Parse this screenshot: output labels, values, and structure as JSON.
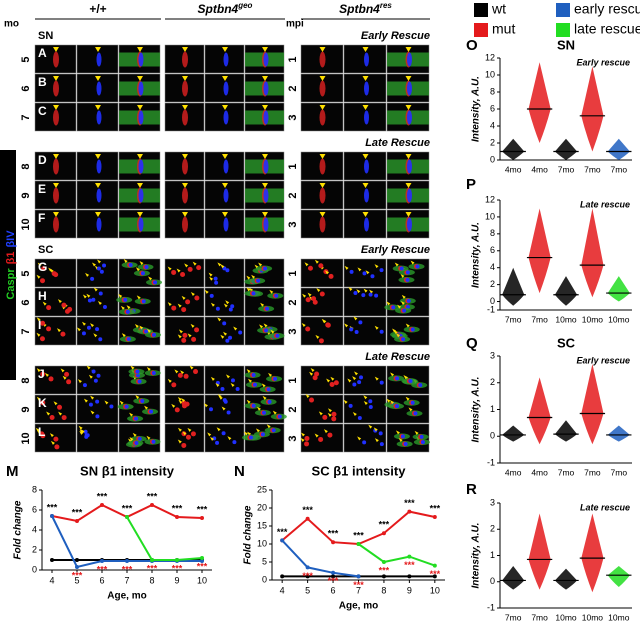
{
  "figure": {
    "genotypes": [
      {
        "base": "+/+"
      },
      {
        "base": "Sptbn4",
        "sup": "geo"
      },
      {
        "base": "Sptbn4",
        "sup": "res"
      }
    ],
    "mo_label": "mo",
    "mpi_label": "mpi",
    "stain_labels": [
      {
        "name": "Caspr",
        "color": "#22cc22"
      },
      {
        "name": "β1",
        "color": "#e41a1c"
      },
      {
        "name": "βIV",
        "color": "#2040ff"
      }
    ],
    "sections": [
      {
        "label": "SN",
        "blocks": [
          {
            "title": "Early Rescue",
            "rows": [
              {
                "panel": "A",
                "mo": "5",
                "mpi": "1"
              },
              {
                "panel": "B",
                "mo": "6",
                "mpi": "2"
              },
              {
                "panel": "C",
                "mo": "7",
                "mpi": "3"
              }
            ]
          },
          {
            "title": "Late Rescue",
            "rows": [
              {
                "panel": "D",
                "mo": "8",
                "mpi": "1"
              },
              {
                "panel": "E",
                "mo": "9",
                "mpi": "2"
              },
              {
                "panel": "F",
                "mo": "10",
                "mpi": "3"
              }
            ]
          }
        ]
      },
      {
        "label": "SC",
        "blocks": [
          {
            "title": "Early Rescue",
            "rows": [
              {
                "panel": "G",
                "mo": "5",
                "mpi": "1"
              },
              {
                "panel": "H",
                "mo": "6",
                "mpi": "2"
              },
              {
                "panel": "I",
                "mo": "7",
                "mpi": "3"
              }
            ]
          },
          {
            "title": "Late Rescue",
            "rows": [
              {
                "panel": "J",
                "mo": "8",
                "mpi": "1"
              },
              {
                "panel": "K",
                "mo": "9",
                "mpi": "2"
              },
              {
                "panel": "L",
                "mo": "10",
                "mpi": "3"
              }
            ]
          }
        ]
      }
    ],
    "legend": [
      {
        "name": "wt",
        "color": "#000000"
      },
      {
        "name": "mut",
        "color": "#e41a1c"
      },
      {
        "name": "early rescue",
        "color": "#1f5fbf"
      },
      {
        "name": "late rescue",
        "color": "#22dd22"
      }
    ]
  },
  "chart_data": [
    {
      "type": "line",
      "panel": "M",
      "title": "SN β1 intensity",
      "x_label": "Age, mo",
      "y_label": "Fold change",
      "x": [
        4,
        5,
        6,
        7,
        8,
        9,
        10
      ],
      "xlim": [
        3.6,
        10.4
      ],
      "xticks": [
        4,
        5,
        6,
        7,
        8,
        9,
        10
      ],
      "ylim": [
        0,
        8
      ],
      "yticks": [
        0,
        2,
        4,
        6,
        8
      ],
      "series": [
        {
          "legend": 1,
          "values": [
            5.4,
            4.9,
            6.5,
            5.3,
            6.5,
            5.3,
            5.2
          ],
          "significance": [
            "***",
            "***",
            "***",
            "***",
            "***",
            "***",
            "***"
          ],
          "significance_color": "#000000"
        },
        {
          "legend": 0,
          "values": [
            1,
            1,
            1,
            1,
            1,
            1,
            1
          ]
        },
        {
          "legend": 2,
          "values": [
            5.4,
            0.3,
            0.9,
            0.9,
            0.9,
            0.9,
            0.9
          ],
          "significance": [
            null,
            "***",
            "***",
            "***",
            null,
            null,
            null
          ],
          "significance_color": "#e41a1c"
        },
        {
          "legend": 3,
          "values": [
            null,
            null,
            null,
            5.3,
            1.0,
            1.0,
            1.2
          ],
          "significance": [
            null,
            null,
            null,
            null,
            "***",
            "***",
            "***"
          ],
          "significance_color": "#e41a1c"
        }
      ]
    },
    {
      "type": "line",
      "panel": "N",
      "title": "SC β1 intensity",
      "x_label": "Age, mo",
      "y_label": "Fold change",
      "x": [
        4,
        5,
        6,
        7,
        8,
        9,
        10
      ],
      "xlim": [
        3.6,
        10.4
      ],
      "xticks": [
        4,
        5,
        6,
        7,
        8,
        9,
        10
      ],
      "ylim": [
        0,
        25
      ],
      "yticks": [
        0,
        5,
        10,
        15,
        20,
        25
      ],
      "series": [
        {
          "legend": 1,
          "values": [
            11,
            17,
            10.5,
            10,
            13,
            19,
            17.5
          ],
          "significance": [
            "***",
            "***",
            "***",
            "***",
            "***",
            "***",
            "***"
          ],
          "significance_color": "#000000"
        },
        {
          "legend": 0,
          "values": [
            1,
            1,
            1,
            1,
            1,
            1,
            1
          ]
        },
        {
          "legend": 2,
          "values": [
            11,
            3.5,
            2,
            1,
            null,
            null,
            null
          ],
          "significance": [
            null,
            "***",
            "***",
            "***",
            null,
            null,
            null
          ],
          "significance_color": "#e41a1c"
        },
        {
          "legend": 3,
          "values": [
            null,
            null,
            null,
            10,
            5,
            6.5,
            4
          ],
          "significance": [
            null,
            null,
            null,
            null,
            "***",
            "***",
            "***"
          ],
          "significance_color": "#e41a1c"
        }
      ]
    },
    {
      "type": "strip",
      "panel": "O",
      "tissue": "SN",
      "subtitle": "Early rescue",
      "y_label": "Intensity, A.U.",
      "ylim": [
        0,
        12
      ],
      "yticks": [
        0,
        2,
        4,
        6,
        8,
        10,
        12
      ],
      "categories": [
        "4mo",
        "4mo",
        "7mo",
        "7mo",
        "7mo"
      ],
      "groups": [
        0,
        1,
        0,
        1,
        2
      ],
      "values": [
        1,
        6,
        1,
        5.2,
        1
      ],
      "low": [
        0,
        2,
        0,
        1,
        0
      ],
      "high": [
        2.5,
        11.5,
        2.5,
        11,
        2.5
      ]
    },
    {
      "type": "strip",
      "panel": "P",
      "subtitle": "Late rescue",
      "y_label": "Intensity, A.U.",
      "ylim": [
        -1,
        12
      ],
      "yticks": [
        -1,
        0,
        2,
        4,
        6,
        8,
        10,
        12
      ],
      "categories": [
        "7mo",
        "7mo",
        "10mo",
        "10mo",
        "10mo"
      ],
      "groups": [
        0,
        1,
        0,
        1,
        3
      ],
      "values": [
        0.8,
        5.2,
        0.8,
        4.3,
        1.0
      ],
      "low": [
        -0.5,
        1,
        -0.5,
        0.5,
        0
      ],
      "high": [
        4,
        11,
        3,
        11,
        3
      ]
    },
    {
      "type": "strip",
      "panel": "Q",
      "tissue": "SC",
      "subtitle": "Early rescue",
      "y_label": "Intensity, A.U.",
      "ylim": [
        -1,
        3
      ],
      "yticks": [
        -1,
        0,
        1,
        2,
        3
      ],
      "categories": [
        "4mo",
        "4mo",
        "7mo",
        "7mo",
        "7mo"
      ],
      "groups": [
        0,
        1,
        0,
        1,
        2
      ],
      "values": [
        0.05,
        0.7,
        0.08,
        0.85,
        0.05
      ],
      "low": [
        -0.2,
        -0.3,
        -0.2,
        -0.3,
        -0.2
      ],
      "high": [
        0.4,
        2.2,
        0.6,
        2.7,
        0.4
      ]
    },
    {
      "type": "strip",
      "panel": "R",
      "subtitle": "Late rescue",
      "y_label": "Intensity, A.U.",
      "ylim": [
        -1,
        3
      ],
      "yticks": [
        -1,
        0,
        1,
        2,
        3
      ],
      "categories": [
        "7mo",
        "7mo",
        "10mo",
        "10mo",
        "10mo"
      ],
      "groups": [
        0,
        1,
        0,
        1,
        3
      ],
      "values": [
        0.05,
        0.85,
        0.05,
        0.9,
        0.25
      ],
      "low": [
        -0.3,
        -0.3,
        -0.3,
        -0.4,
        -0.2
      ],
      "high": [
        0.6,
        2.6,
        0.5,
        2.6,
        0.6
      ]
    }
  ]
}
